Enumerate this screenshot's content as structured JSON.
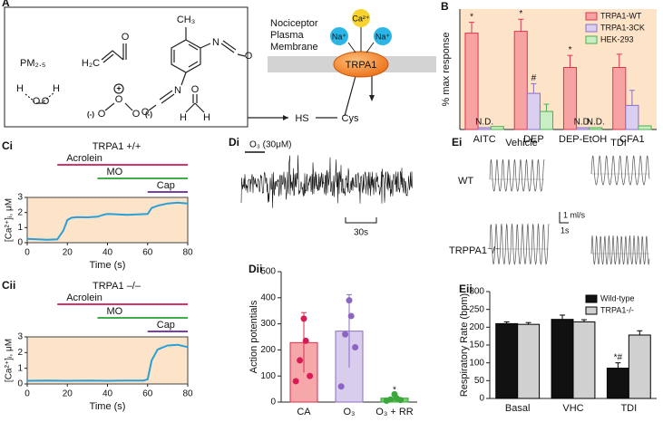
{
  "diagram": {
    "label": "A",
    "pm": "PM₂.₅",
    "peroxide": [
      "H",
      "O",
      "O",
      "H"
    ],
    "acrolein": [
      "H₂C",
      "O"
    ],
    "tdi": [
      "CH₃",
      "N",
      "O",
      "N",
      "O"
    ],
    "ozone": [
      "O",
      "O",
      "O"
    ],
    "ozone_charges": [
      "+",
      "(-)",
      "(-)"
    ],
    "formaldehyde": [
      "O",
      "H",
      "H"
    ],
    "membrane_label": [
      "Nociceptor",
      "Plasma",
      "Membrane"
    ],
    "channel": "TRPA1",
    "ions": [
      "Na⁺",
      "Ca²⁺",
      "Na⁺"
    ],
    "thiol": "HS",
    "residue": "Cys"
  },
  "recording": {
    "label": "Di",
    "stimulus": "O₃ (30μM)",
    "scale": "30s"
  },
  "breathing": {
    "label": "Ei",
    "columns": [
      "Vehicle",
      "TDI"
    ],
    "rows": [
      "WT",
      "TRPPA1⁻/⁻"
    ],
    "scale_y": "1 ml/s",
    "scale_x": "1s"
  },
  "chart_data": [
    {
      "panel": "B",
      "type": "bar",
      "ylabel": "% max response",
      "categories": [
        "AITC",
        "DEP",
        "DEP-EtOH",
        "CFA1"
      ],
      "ylim": [
        0,
        20
      ],
      "background": "#fde3c8",
      "legend": "upper right",
      "series": [
        {
          "name": "TRPA1-WT",
          "color": "#f7a3a3",
          "edge": "#e0334e",
          "values": [
            16,
            16.3,
            10.3,
            10.3
          ],
          "errors": [
            1.8,
            2,
            2,
            2.2
          ],
          "annotations": [
            "*",
            "*",
            "*",
            null
          ]
        },
        {
          "name": "TRPA1-3CK",
          "color": "#dacff0",
          "edge": "#8a6fc8",
          "values": [
            0.3,
            6,
            0.3,
            4
          ],
          "errors": [
            null,
            1.6,
            null,
            2.5
          ],
          "annotations": [
            "N.D.",
            "#",
            "N.D.",
            null
          ]
        },
        {
          "name": "HEK-293",
          "color": "#c8efc4",
          "edge": "#4caf50",
          "values": [
            0.5,
            3,
            0.3,
            0.6
          ],
          "errors": [
            null,
            1.2,
            null,
            null
          ],
          "annotations": [
            null,
            null,
            "N.D.",
            null
          ]
        }
      ]
    },
    {
      "panel": "Ci",
      "type": "line",
      "title": "TRPA1 +/+",
      "xlabel": "Time (s)",
      "ylabel": "[Ca²⁺]ᵢ, μM",
      "color": "#2a9fd8",
      "background": "#fde3c8",
      "x": [
        0,
        5,
        10,
        15,
        18,
        20,
        22,
        25,
        30,
        35,
        38,
        40,
        45,
        50,
        55,
        60,
        62,
        65,
        70,
        75,
        80
      ],
      "values": [
        0.25,
        0.22,
        0.2,
        0.22,
        0.8,
        1.5,
        1.65,
        1.7,
        1.68,
        1.72,
        1.85,
        1.9,
        1.88,
        1.85,
        1.87,
        1.9,
        2.3,
        2.45,
        2.6,
        2.65,
        2.6
      ],
      "xlim": [
        0,
        80
      ],
      "xticks": [
        0,
        20,
        40,
        60,
        80
      ],
      "ylim": [
        0,
        3
      ],
      "yticks": [
        0,
        1,
        2,
        3
      ],
      "stimuli": [
        {
          "label": "Acrolein",
          "start": 15,
          "end": 80,
          "color": "#d6336c"
        },
        {
          "label": "MO",
          "start": 35,
          "end": 80,
          "color": "#3fae49"
        },
        {
          "label": "Cap",
          "start": 60,
          "end": 80,
          "color": "#7b3fa8"
        }
      ]
    },
    {
      "panel": "Cii",
      "type": "line",
      "title": "TRPA1 –/–",
      "xlabel": "Time (s)",
      "ylabel": "[Ca²⁺]ᵢ, μM",
      "color": "#2a9fd8",
      "background": "#fde3c8",
      "x": [
        0,
        10,
        20,
        30,
        40,
        50,
        58,
        60,
        62,
        65,
        70,
        75,
        80
      ],
      "values": [
        0.2,
        0.22,
        0.2,
        0.22,
        0.2,
        0.22,
        0.22,
        0.3,
        1.5,
        2.2,
        2.45,
        2.5,
        2.35
      ],
      "xlim": [
        0,
        80
      ],
      "xticks": [
        0,
        20,
        40,
        60,
        80
      ],
      "ylim": [
        0,
        3
      ],
      "yticks": [
        0,
        1,
        2,
        3
      ],
      "stimuli": [
        {
          "label": "Acrolein",
          "start": 15,
          "end": 80,
          "color": "#d6336c"
        },
        {
          "label": "MO",
          "start": 35,
          "end": 80,
          "color": "#3fae49"
        },
        {
          "label": "Cap",
          "start": 60,
          "end": 80,
          "color": "#7b3fa8"
        }
      ]
    },
    {
      "panel": "Dii",
      "type": "bar",
      "ylabel": "Action potentials",
      "categories": [
        "CA",
        "O₃",
        "O₃ +  RR"
      ],
      "values": [
        228,
        272,
        15
      ],
      "errors": [
        115,
        140,
        10
      ],
      "annotations": [
        null,
        null,
        "*"
      ],
      "colors": [
        "#f6a7aa",
        "#d9cdee",
        "#7ccf6e"
      ],
      "edges": [
        "#d6304f",
        "#8c6cc4",
        "#34a437"
      ],
      "points": [
        [
          320,
          235,
          160,
          100,
          80
        ],
        [
          390,
          330,
          260,
          210,
          60
        ],
        [
          30,
          15,
          10,
          8,
          5
        ]
      ],
      "point_colors": [
        "#d81b55",
        "#8a65c1",
        "#3aa83a"
      ],
      "ylim": [
        0,
        500
      ],
      "yticks": [
        0,
        100,
        200,
        300,
        400,
        500
      ]
    },
    {
      "panel": "Eii",
      "type": "bar",
      "ylabel": "Respiratory Rate (bpm)",
      "categories": [
        "Basal",
        "VHC",
        "TDI"
      ],
      "legend": "upper right",
      "ylim": [
        0,
        300
      ],
      "yticks": [
        0,
        50,
        100,
        150,
        200,
        250,
        300
      ],
      "series": [
        {
          "name": "Wild-type",
          "color": "#111111",
          "edge": "#000000",
          "values": [
            210,
            222,
            85
          ],
          "errors": [
            5,
            12,
            15
          ],
          "annotations": [
            null,
            null,
            "*#"
          ]
        },
        {
          "name": "TRPA1-/-",
          "color": "#d0d0d0",
          "edge": "#000000",
          "values": [
            208,
            215,
            178
          ],
          "errors": [
            5,
            6,
            12
          ]
        }
      ]
    }
  ]
}
